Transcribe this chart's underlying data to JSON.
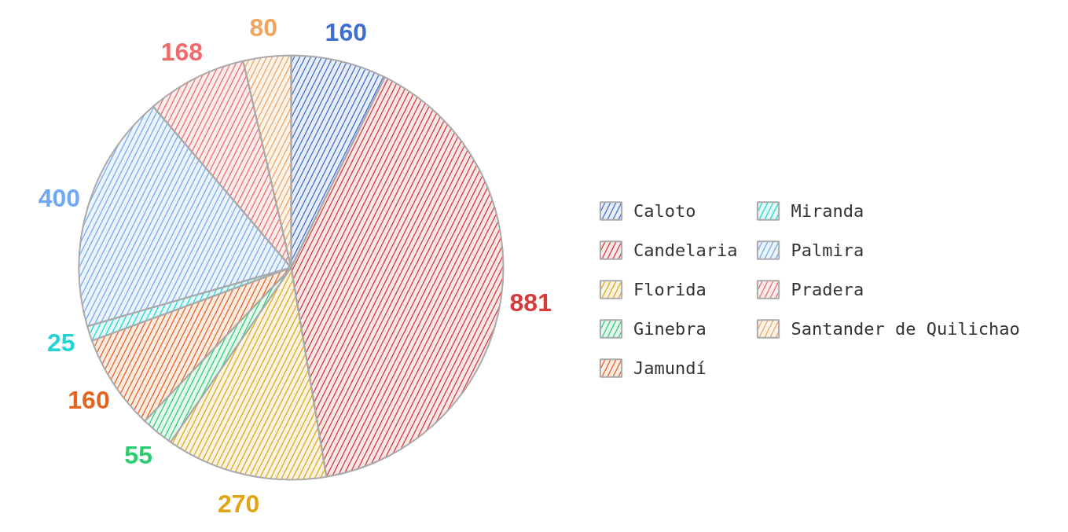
{
  "chart_data": {
    "type": "pie",
    "categories": [
      "Caloto",
      "Candelaria",
      "Florida",
      "Ginebra",
      "Jamundí",
      "Miranda",
      "Palmira",
      "Pradera",
      "Santander de Quilichao"
    ],
    "values": [
      160,
      881,
      270,
      55,
      160,
      25,
      400,
      168,
      80
    ],
    "colors": [
      "#3e6fd0",
      "#d63a3a",
      "#e0a516",
      "#2ecc71",
      "#e3641e",
      "#22d3d3",
      "#6fa8f5",
      "#ef6b6b",
      "#f2a35e"
    ],
    "data_labels": true,
    "legend": "right"
  }
}
